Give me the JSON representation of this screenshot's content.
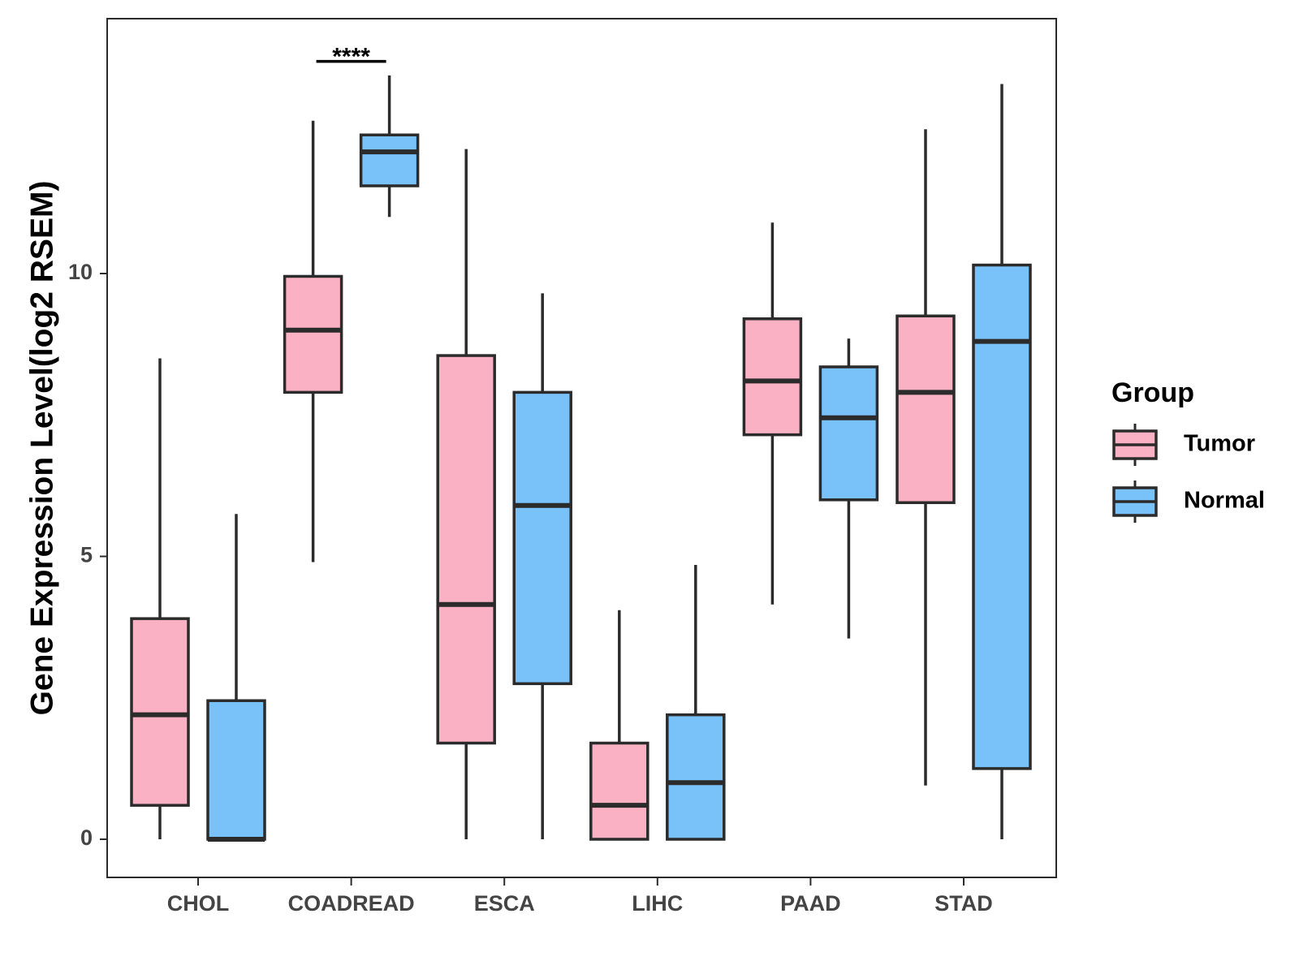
{
  "chart_data": {
    "type": "boxplot",
    "title": "",
    "xlabel": "",
    "ylabel": "Gene Expression Level(log2 RSEM)",
    "ylim": [
      -0.65,
      14.5
    ],
    "yticks": [
      0,
      5,
      10
    ],
    "ytick_labels": [
      "0",
      "5",
      "10"
    ],
    "categories": [
      "CHOL",
      "COADREAD",
      "ESCA",
      "LIHC",
      "PAAD",
      "STAD"
    ],
    "legend": {
      "title": "Group",
      "position": "right",
      "entries": [
        "Tumor",
        "Normal"
      ]
    },
    "colors": {
      "Tumor": "#FBB1C4",
      "Normal": "#79C1F9",
      "outline": "#2b2b2b"
    },
    "series": [
      {
        "name": "Tumor",
        "boxes": [
          {
            "whisker_low": 0.0,
            "q1": 0.6,
            "median": 2.2,
            "q3": 3.9,
            "whisker_high": 8.5
          },
          {
            "whisker_low": 4.9,
            "q1": 7.9,
            "median": 9.0,
            "q3": 9.95,
            "whisker_high": 12.7
          },
          {
            "whisker_low": 0.0,
            "q1": 1.7,
            "median": 4.15,
            "q3": 8.55,
            "whisker_high": 12.2
          },
          {
            "whisker_low": 0.0,
            "q1": 0.0,
            "median": 0.6,
            "q3": 1.7,
            "whisker_high": 4.05
          },
          {
            "whisker_low": 4.15,
            "q1": 7.15,
            "median": 8.1,
            "q3": 9.2,
            "whisker_high": 10.9
          },
          {
            "whisker_low": 0.95,
            "q1": 5.95,
            "median": 7.9,
            "q3": 9.25,
            "whisker_high": 12.55
          }
        ]
      },
      {
        "name": "Normal",
        "boxes": [
          {
            "whisker_low": 0.0,
            "q1": 0.0,
            "median": 0.0,
            "q3": 2.45,
            "whisker_high": 5.75
          },
          {
            "whisker_low": 11.0,
            "q1": 11.55,
            "median": 12.15,
            "q3": 12.45,
            "whisker_high": 13.5
          },
          {
            "whisker_low": 0.0,
            "q1": 2.75,
            "median": 5.9,
            "q3": 7.9,
            "whisker_high": 9.65
          },
          {
            "whisker_low": 0.0,
            "q1": 0.0,
            "median": 1.0,
            "q3": 2.2,
            "whisker_high": 4.85
          },
          {
            "whisker_low": 3.55,
            "q1": 6.0,
            "median": 7.45,
            "q3": 8.35,
            "whisker_high": 8.85
          },
          {
            "whisker_low": 0.0,
            "q1": 1.25,
            "median": 8.8,
            "q3": 10.15,
            "whisker_high": 13.35
          }
        ]
      }
    ],
    "annotations": [
      {
        "category": "COADREAD",
        "text": "****",
        "y": 13.75
      }
    ]
  }
}
